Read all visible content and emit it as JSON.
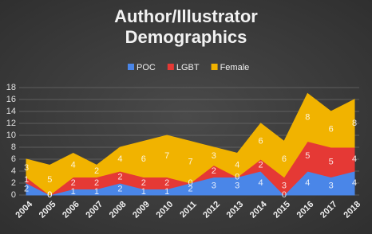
{
  "chart_data": {
    "type": "stacked-area",
    "title": "Author/Illustrator Demographics",
    "categories": [
      "2004",
      "2005",
      "2006",
      "2007",
      "2008",
      "2009",
      "2010",
      "2011",
      "2012",
      "2013",
      "2014",
      "2015",
      "2016",
      "2017",
      "2018"
    ],
    "series": [
      {
        "name": "POC",
        "color": "#4a86e8",
        "values": [
          2,
          0,
          1,
          1,
          2,
          1,
          1,
          2,
          3,
          3,
          4,
          0,
          4,
          3,
          4
        ]
      },
      {
        "name": "LGBT",
        "color": "#e53935",
        "values": [
          1,
          0,
          2,
          2,
          2,
          2,
          2,
          0,
          2,
          0,
          2,
          3,
          5,
          5,
          4
        ]
      },
      {
        "name": "Female",
        "color": "#f1b300",
        "values": [
          3,
          5,
          4,
          2,
          4,
          6,
          7,
          7,
          3,
          4,
          6,
          6,
          8,
          6,
          8
        ]
      }
    ],
    "ylim": [
      0,
      18
    ],
    "yticks": [
      0,
      2,
      4,
      6,
      8,
      10,
      12,
      14,
      16,
      18
    ],
    "grid": true,
    "legend": "top"
  }
}
